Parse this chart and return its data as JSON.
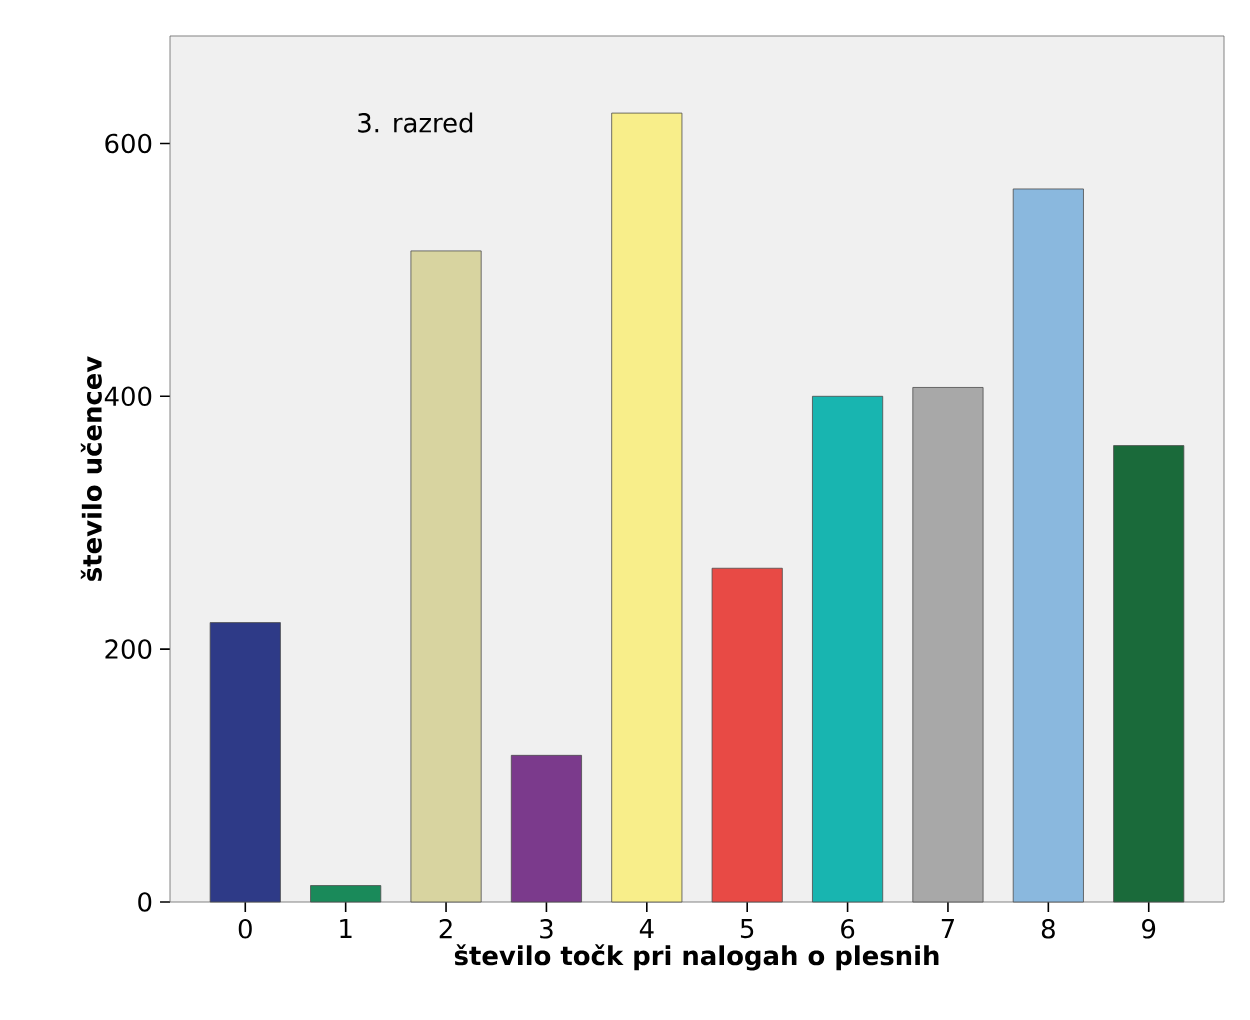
{
  "chart_data": {
    "type": "bar",
    "xlabel": "število točk pri nalogah o plesnih",
    "ylabel": "število učencev",
    "annotations": [
      "3. razred"
    ],
    "categories": [
      "0",
      "1",
      "2",
      "3",
      "4",
      "5",
      "6",
      "7",
      "8",
      "9"
    ],
    "values": [
      221,
      13,
      515,
      116,
      624,
      264,
      400,
      407,
      564,
      361
    ],
    "colors": [
      "#2e3a87",
      "#1a8a5a",
      "#d8d4a0",
      "#7b3a8c",
      "#f8ee8a",
      "#e84a45",
      "#18b5b0",
      "#a8a8a8",
      "#8ab8de",
      "#1a6a3a"
    ],
    "ylim": [
      0,
      685
    ],
    "yticks": [
      0,
      200,
      400,
      600
    ],
    "grid": false
  }
}
